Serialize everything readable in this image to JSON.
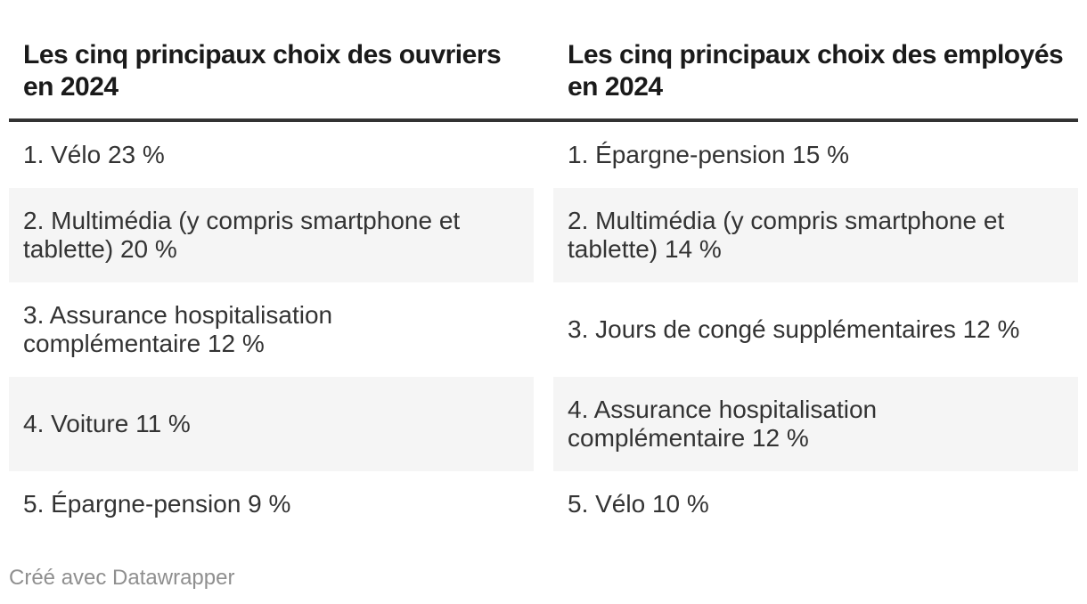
{
  "colors": {
    "background": "#ffffff",
    "header_rule": "#333333",
    "row_stripe": "#f5f5f5",
    "title_text": "#1a1a1a",
    "body_text": "#333333",
    "credit_text": "#8f8f8f"
  },
  "footer": {
    "credit": "Créé avec Datawrapper"
  },
  "tables": [
    {
      "id": "ouvriers",
      "title_lines": [
        "Les cinq principaux choix des ouvriers",
        "en 2024"
      ],
      "rows": [
        [
          "1. Vélo 23 %"
        ],
        [
          "2. Multimédia (y compris smartphone et",
          "tablette) 20 %"
        ],
        [
          "3. Assurance hospitalisation",
          "complémentaire 12 %"
        ],
        [
          "4. Voiture 11 %"
        ],
        [
          "5. Épargne-pension 9 %"
        ]
      ]
    },
    {
      "id": "employes",
      "title_lines": [
        "Les cinq principaux choix des employés",
        "en 2024"
      ],
      "rows": [
        [
          "1. Épargne-pension 15 %"
        ],
        [
          "2. Multimédia (y compris smartphone et",
          "tablette) 14 %"
        ],
        [
          "3. Jours de congé supplémentaires 12 %"
        ],
        [
          "4. Assurance hospitalisation",
          "complémentaire 12 %"
        ],
        [
          "5. Vélo 10 %"
        ]
      ]
    }
  ],
  "chart_data": {
    "type": "table",
    "tables": [
      {
        "title": "Les cinq principaux choix des ouvriers en 2024",
        "items": [
          {
            "rank": 1,
            "label": "Vélo",
            "percent": 23
          },
          {
            "rank": 2,
            "label": "Multimédia (y compris smartphone et tablette)",
            "percent": 20
          },
          {
            "rank": 3,
            "label": "Assurance hospitalisation complémentaire",
            "percent": 12
          },
          {
            "rank": 4,
            "label": "Voiture",
            "percent": 11
          },
          {
            "rank": 5,
            "label": "Épargne-pension",
            "percent": 9
          }
        ]
      },
      {
        "title": "Les cinq principaux choix des employés en 2024",
        "items": [
          {
            "rank": 1,
            "label": "Épargne-pension",
            "percent": 15
          },
          {
            "rank": 2,
            "label": "Multimédia (y compris smartphone et tablette)",
            "percent": 14
          },
          {
            "rank": 3,
            "label": "Jours de congé supplémentaires",
            "percent": 12
          },
          {
            "rank": 4,
            "label": "Assurance hospitalisation complémentaire",
            "percent": 12
          },
          {
            "rank": 5,
            "label": "Vélo",
            "percent": 10
          }
        ]
      }
    ]
  }
}
